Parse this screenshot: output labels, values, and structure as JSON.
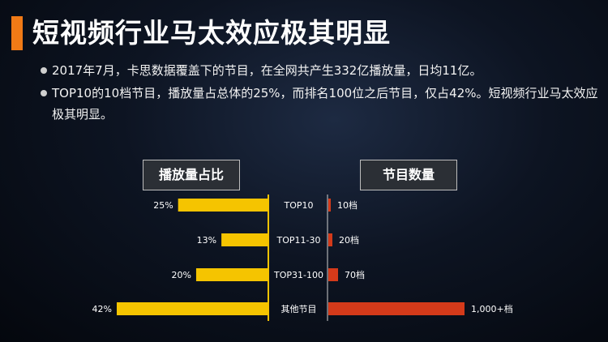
{
  "title": "短视频行业马太效应极其明显",
  "bullets": [
    "2017年7月，卡思数据覆盖下的节目，在全网共产生332亿播放量，日均11亿。",
    "TOP10的10档节目，播放量占总体的25%，而排名100位之后节目，仅占42%。短视频行业马太效应极其明显。"
  ],
  "chart_data": {
    "type": "bar",
    "orientation": "horizontal-butterfly",
    "categories": [
      "TOP10",
      "TOP11-30",
      "TOP31-100",
      "其他节目"
    ],
    "series": [
      {
        "name": "播放量占比",
        "values": [
          25,
          13,
          20,
          42
        ],
        "labels": [
          "25%",
          "13%",
          "20%",
          "42%"
        ],
        "color": "#f5c400",
        "side": "left"
      },
      {
        "name": "节目数量",
        "values": [
          10,
          20,
          70,
          1000
        ],
        "labels": [
          "10档",
          "20档",
          "70档",
          "1,000+档"
        ],
        "color": "#d43a1a",
        "side": "right"
      }
    ],
    "grid": false
  },
  "colors": {
    "accent": "#f07a16",
    "share_bar": "#f5c400",
    "count_bar": "#d43a1a",
    "axis_line": "#f5c400"
  }
}
